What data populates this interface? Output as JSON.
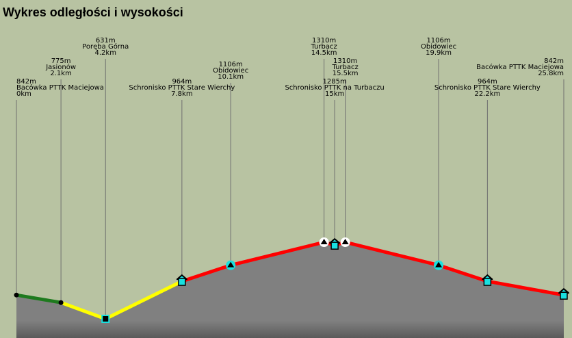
{
  "title": "Wykres odległości i wysokości",
  "chart_data": {
    "type": "area",
    "title": "Wykres odległości i wysokości",
    "x_unit": "km",
    "y_unit": "m",
    "xlim": [
      0,
      25.8
    ],
    "grid": false,
    "legend": "none",
    "colors": {
      "background": "#b8c3a2",
      "fill": "#808080",
      "fill_bottom": "#5a5a5a",
      "vline": "#6f6f6f",
      "marker_cyan": "#19e0e0",
      "segment_green": "#1e7a1e",
      "segment_yellow": "#ffff00",
      "segment_red": "#ff0000"
    },
    "points": [
      {
        "name": "Bacówka PTTK Maciejowa",
        "elev_label": "842m",
        "dist_label": "0km",
        "x": 0,
        "y": 842,
        "marker": "dot",
        "anchor": "start"
      },
      {
        "name": "Jasionów",
        "elev_label": "775m",
        "dist_label": "2.1km",
        "x": 2.1,
        "y": 775,
        "marker": "dot",
        "anchor": "middle"
      },
      {
        "name": "Poręba Górna",
        "elev_label": "631m",
        "dist_label": "4.2km",
        "x": 4.2,
        "y": 631,
        "marker": "square-black",
        "anchor": "middle"
      },
      {
        "name": "Schronisko PTTK Stare Wierchy",
        "elev_label": "964m",
        "dist_label": "7.8km",
        "x": 7.8,
        "y": 964,
        "marker": "shelter",
        "anchor": "middle"
      },
      {
        "name": "Obidowiec",
        "elev_label": "1106m",
        "dist_label": "10.1km",
        "x": 10.1,
        "y": 1106,
        "marker": "peak-cyan",
        "anchor": "middle"
      },
      {
        "name": "Turbacz",
        "elev_label": "1310m",
        "dist_label": "14.5km",
        "x": 14.5,
        "y": 1310,
        "marker": "peak-white",
        "anchor": "middle"
      },
      {
        "name": "Schronisko PTTK na Turbaczu",
        "elev_label": "1285m",
        "dist_label": "15km",
        "x": 15.0,
        "y": 1285,
        "marker": "shelter",
        "anchor": "middle"
      },
      {
        "name": "Turbacz",
        "elev_label": "1310m",
        "dist_label": "15.5km",
        "x": 15.5,
        "y": 1310,
        "marker": "peak-white",
        "anchor": "middle"
      },
      {
        "name": "Obidowiec",
        "elev_label": "1106m",
        "dist_label": "19.9km",
        "x": 19.9,
        "y": 1106,
        "marker": "peak-cyan",
        "anchor": "middle"
      },
      {
        "name": "Schronisko PTTK Stare Wierchy",
        "elev_label": "964m",
        "dist_label": "22.2km",
        "x": 22.2,
        "y": 964,
        "marker": "shelter",
        "anchor": "middle"
      },
      {
        "name": "Bacówka PTTK Maciejowa",
        "elev_label": "842m",
        "dist_label": "25.8km",
        "x": 25.8,
        "y": 842,
        "marker": "shelter",
        "anchor": "end"
      }
    ],
    "segments": [
      {
        "from": 0,
        "to": 1,
        "color": "#1e7a1e"
      },
      {
        "from": 1,
        "to": 3,
        "color": "#ffff00"
      },
      {
        "from": 3,
        "to": 10,
        "color": "#ff0000"
      }
    ]
  }
}
